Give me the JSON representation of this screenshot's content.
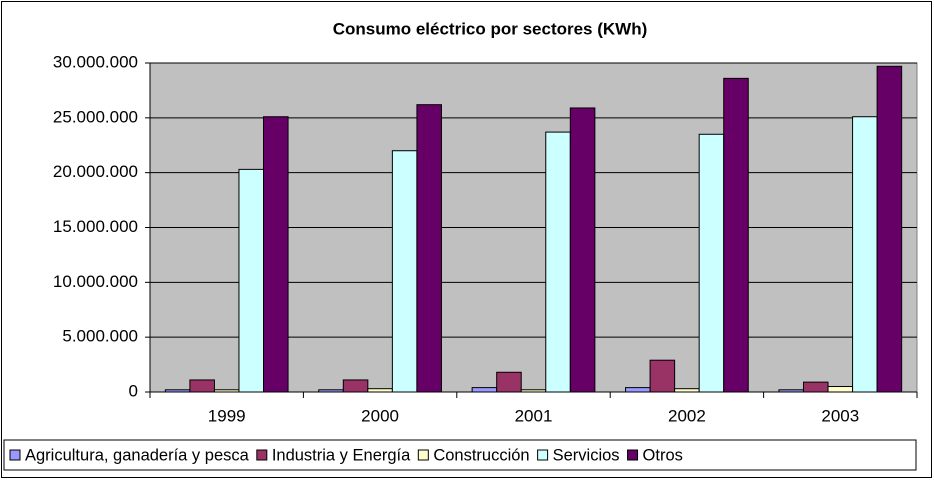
{
  "chart_data": {
    "type": "bar",
    "title": "Consumo eléctrico por sectores (KWh)",
    "categories": [
      "1999",
      "2000",
      "2001",
      "2002",
      "2003"
    ],
    "series": [
      {
        "name": "Agricultura, ganadería y pesca",
        "color": "#9999FF",
        "values": [
          200000,
          200000,
          400000,
          400000,
          200000
        ]
      },
      {
        "name": "Industria y Energía",
        "color": "#993366",
        "values": [
          1100000,
          1100000,
          1800000,
          2900000,
          900000
        ]
      },
      {
        "name": "Construcción",
        "color": "#FFFFCC",
        "values": [
          200000,
          300000,
          200000,
          300000,
          500000
        ]
      },
      {
        "name": "Servicios",
        "color": "#CCFFFF",
        "values": [
          20300000,
          22000000,
          23700000,
          23500000,
          25100000
        ]
      },
      {
        "name": "Otros",
        "color": "#660066",
        "values": [
          25100000,
          26200000,
          25900000,
          28600000,
          29700000
        ]
      }
    ],
    "ylim": [
      0,
      30000000
    ],
    "yticks": [
      0,
      {
        "value": 5000000,
        "label": "5.000.000"
      },
      {
        "value": 10000000,
        "label": "10.000.000"
      },
      {
        "value": 15000000,
        "label": "15.000.000"
      },
      {
        "value": 20000000,
        "label": "20.000.000"
      },
      {
        "value": 25000000,
        "label": "25.000.000"
      },
      {
        "value": 30000000,
        "label": "30.000.000"
      }
    ],
    "grid": true,
    "legend": "bottom",
    "plot_background": "#C0C0C0"
  }
}
